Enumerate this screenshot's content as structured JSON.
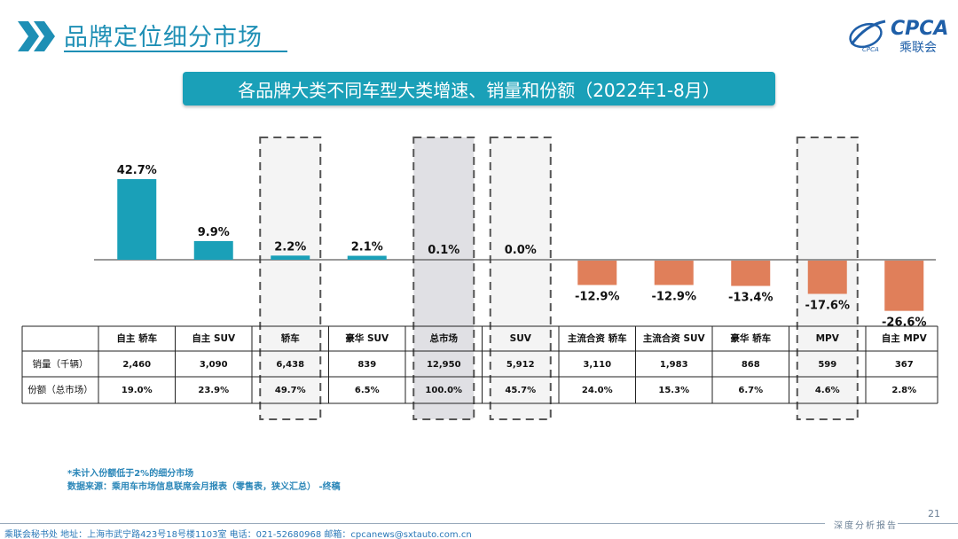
{
  "header": {
    "title": "品牌定位细分市场",
    "logo_text": "CPCA",
    "logo_sub": "乘联会",
    "logo_small": "CPCA"
  },
  "banner": {
    "text": "各品牌大类不同车型大类增速、销量和份额（2022年1-8月）"
  },
  "chart_data": {
    "type": "bar",
    "categories": [
      "自主 轿车",
      "自主 SUV",
      "轿车",
      "豪华 SUV",
      "总市场",
      "SUV",
      "主流合资 轿车",
      "主流合资 SUV",
      "豪华 轿车",
      "MPV",
      "自主 MPV"
    ],
    "series": [
      {
        "values": [
          42.7,
          9.9,
          2.2,
          2.1,
          0.1,
          0.0,
          -12.9,
          -12.9,
          -13.4,
          -17.6,
          -26.6
        ]
      }
    ],
    "value_labels": [
      "42.7%",
      "9.9%",
      "2.2%",
      "2.1%",
      "0.1%",
      "0.0%",
      "-12.9%",
      "-12.9%",
      "-13.4%",
      "-17.6%",
      "-26.6%"
    ],
    "colors": {
      "positive": "#1aa0b8",
      "negative": "#e07f5a"
    },
    "highlighted_categories": [
      "轿车",
      "总市场",
      "SUV",
      "MPV"
    ],
    "table": {
      "row_headers": [
        "销量（千辆）",
        "份额（总市场）"
      ],
      "rows": [
        [
          "2,460",
          "3,090",
          "6,438",
          "839",
          "12,950",
          "5,912",
          "3,110",
          "1,983",
          "868",
          "599",
          "367"
        ],
        [
          "19.0%",
          "23.9%",
          "49.7%",
          "6.5%",
          "100.0%",
          "45.7%",
          "24.0%",
          "15.3%",
          "6.7%",
          "4.6%",
          "2.8%"
        ]
      ]
    }
  },
  "notes": {
    "line1": "*未计入份额低于2%的细分市场",
    "line2": "数据来源：乘用车市场信息联席会月报表（零售表，狭义汇总） -终稿"
  },
  "footer": {
    "text": "乘联会秘书处    地址：上海市武宁路423号18号楼1103室  电话：021-52680968   邮箱：cpcanews@sxtauto.com.cn",
    "report": "深度分析报告",
    "page": "21"
  }
}
